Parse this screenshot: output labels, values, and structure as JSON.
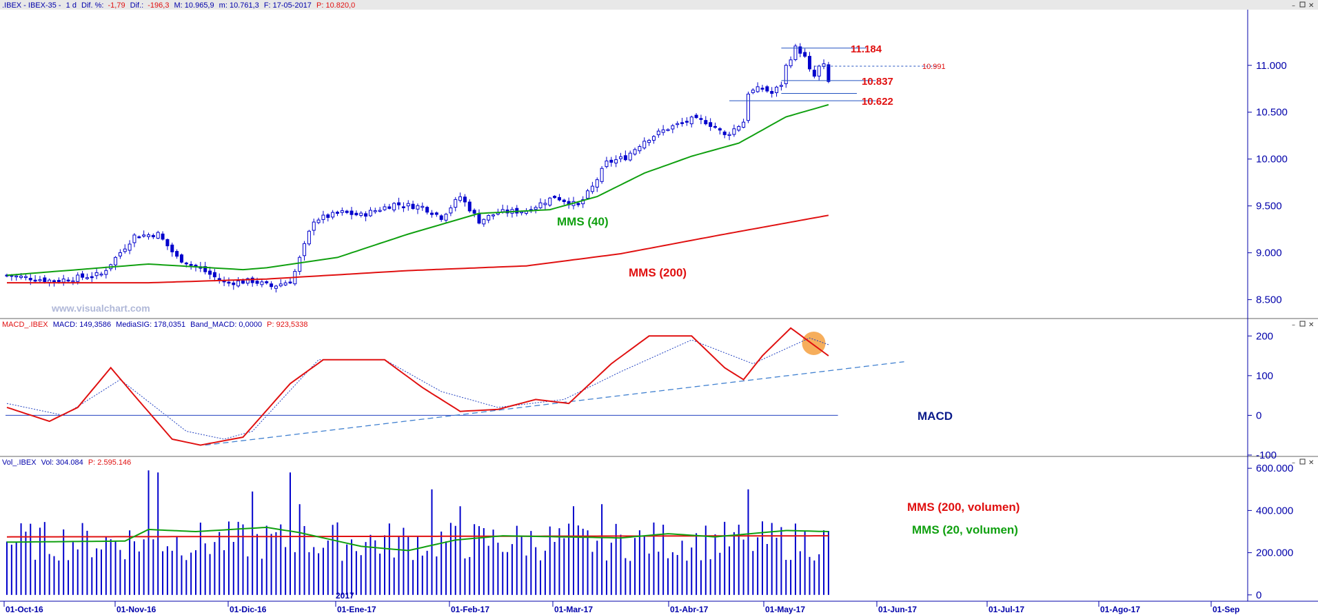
{
  "header": {
    "price_panel": {
      "symbol": ".IBEX - IBEX-35 -",
      "period": "1 d",
      "dif_pct_label": "Dif. %:",
      "dif_pct_value": "-1,79",
      "dif_label": "Dif.:",
      "dif_value": "-196,3",
      "high_label": "M: 10.965,9",
      "low_label": "m: 10.761,3",
      "date_label": "F: 17-05-2017",
      "close_label": "P: 10.820,0"
    },
    "macd_panel": {
      "name": "MACD_.IBEX",
      "macd_label": "MACD: 149,3586",
      "signal_label": "MediaSIG: 178,0351",
      "band_label": "Band_MACD: 0,0000",
      "p_label": "P: 923,5338"
    },
    "volume_panel": {
      "name": "Vol_.IBEX",
      "vol_label": "Vol: 304.084",
      "p_label": "P: 2.595.146"
    }
  },
  "watermark": "www.visualchart.com",
  "annotations": {
    "mms40": "MMS (40)",
    "mms200": "MMS (200)",
    "macd": "MACD",
    "vol_mms200": "MMS (200, volumen)",
    "vol_mms20": "MMS (20, volumen)"
  },
  "colors": {
    "candle": "#0000cc",
    "mms40": "#10a010",
    "mms200": "#e01010",
    "macd_line": "#e01010",
    "signal_line": "#2040c0",
    "trendline": "#4080d0",
    "levels": "#e01010",
    "axis": "#0000aa",
    "highlight": "#f5a040"
  },
  "chart_data": [
    {
      "type": "candlestick",
      "title": "",
      "ylim": [
        8350,
        11550
      ],
      "y_ticks": [
        "8.500",
        "9.000",
        "9.500",
        "10.000",
        "10.500",
        "11.000"
      ],
      "y_tick_values": [
        8500,
        9000,
        9500,
        10000,
        10500,
        11000
      ],
      "x_ticks": [
        "01-Oct-16",
        "01-Nov-16",
        "01-Dic-16",
        "01-Ene-17",
        "01-Feb-17",
        "01-Mar-17",
        "01-Abr-17",
        "01-May-17",
        "01-Jun-17",
        "01-Jul-17",
        "01-Ago-17",
        "01-Sep"
      ],
      "year_marker": "2017",
      "close_approx": [
        [
          0,
          8760
        ],
        [
          10,
          8700
        ],
        [
          20,
          8770
        ],
        [
          27,
          9180
        ],
        [
          32,
          9200
        ],
        [
          36,
          8950
        ],
        [
          42,
          8800
        ],
        [
          46,
          8680
        ],
        [
          52,
          8700
        ],
        [
          56,
          8640
        ],
        [
          60,
          8700
        ],
        [
          61,
          8800
        ],
        [
          65,
          9350
        ],
        [
          71,
          9430
        ],
        [
          75,
          9400
        ],
        [
          82,
          9520
        ],
        [
          88,
          9490
        ],
        [
          92,
          9380
        ],
        [
          96,
          9600
        ],
        [
          100,
          9340
        ],
        [
          104,
          9430
        ],
        [
          110,
          9450
        ],
        [
          116,
          9600
        ],
        [
          121,
          9500
        ],
        [
          124,
          9700
        ],
        [
          127,
          9960
        ],
        [
          131,
          10020
        ],
        [
          135,
          10200
        ],
        [
          140,
          10330
        ],
        [
          145,
          10420
        ],
        [
          148,
          10400
        ],
        [
          150,
          10340
        ],
        [
          152,
          10250
        ],
        [
          154,
          10320
        ],
        [
          156,
          10400
        ],
        [
          157,
          10710
        ],
        [
          160,
          10760
        ],
        [
          162,
          10700
        ],
        [
          164,
          10800
        ],
        [
          165,
          10990
        ],
        [
          167,
          11184
        ],
        [
          168,
          11150
        ],
        [
          169,
          11080
        ],
        [
          170,
          10940
        ],
        [
          171,
          10880
        ],
        [
          172,
          10980
        ],
        [
          173,
          10991
        ],
        [
          174,
          10820
        ]
      ],
      "levels": [
        {
          "label": "11.184",
          "value": 11184
        },
        {
          "label": "10.991",
          "value": 10991
        },
        {
          "label": "10.837",
          "value": 10837
        },
        {
          "label": "10.622",
          "value": 10622
        }
      ],
      "series": [
        {
          "name": "MMS (40)",
          "values_approx": [
            [
              0,
              8760
            ],
            [
              30,
              8880
            ],
            [
              50,
              8820
            ],
            [
              55,
              8840
            ],
            [
              70,
              8950
            ],
            [
              85,
              9200
            ],
            [
              100,
              9420
            ],
            [
              115,
              9460
            ],
            [
              125,
              9600
            ],
            [
              135,
              9850
            ],
            [
              145,
              10030
            ],
            [
              155,
              10170
            ],
            [
              165,
              10450
            ],
            [
              174,
              10580
            ]
          ]
        },
        {
          "name": "MMS (200)",
          "values_approx": [
            [
              0,
              8680
            ],
            [
              30,
              8680
            ],
            [
              55,
              8720
            ],
            [
              85,
              8810
            ],
            [
              110,
              8860
            ],
            [
              130,
              8990
            ],
            [
              150,
              9180
            ],
            [
              174,
              9400
            ]
          ]
        }
      ]
    },
    {
      "type": "line",
      "title": "",
      "ylim": [
        -100,
        230
      ],
      "y_ticks": [
        "200",
        "100",
        "0",
        "-100"
      ],
      "y_tick_values": [
        200,
        100,
        0,
        -100
      ],
      "series": [
        {
          "name": "MACD",
          "values_approx": [
            [
              0,
              20
            ],
            [
              9,
              -15
            ],
            [
              15,
              20
            ],
            [
              22,
              120
            ],
            [
              27,
              50
            ],
            [
              35,
              -60
            ],
            [
              41,
              -75
            ],
            [
              50,
              -55
            ],
            [
              60,
              80
            ],
            [
              67,
              140
            ],
            [
              80,
              140
            ],
            [
              88,
              70
            ],
            [
              96,
              10
            ],
            [
              104,
              15
            ],
            [
              112,
              40
            ],
            [
              119,
              30
            ],
            [
              128,
              130
            ],
            [
              136,
              200
            ],
            [
              145,
              200
            ],
            [
              152,
              120
            ],
            [
              156,
              90
            ],
            [
              160,
              150
            ],
            [
              166,
              220
            ],
            [
              174,
              150
            ]
          ]
        },
        {
          "name": "MediaSIG",
          "values_approx": [
            [
              0,
              30
            ],
            [
              12,
              0
            ],
            [
              24,
              90
            ],
            [
              38,
              -40
            ],
            [
              46,
              -60
            ],
            [
              52,
              -40
            ],
            [
              66,
              140
            ],
            [
              80,
              140
            ],
            [
              92,
              60
            ],
            [
              104,
              20
            ],
            [
              118,
              40
            ],
            [
              130,
              110
            ],
            [
              145,
              190
            ],
            [
              158,
              130
            ],
            [
              170,
              195
            ],
            [
              174,
              178
            ]
          ]
        }
      ],
      "zero_line": 0,
      "trendline": [
        [
          42,
          -75
        ],
        [
          190,
          135
        ]
      ],
      "highlight_at": [
        170,
        178
      ]
    },
    {
      "type": "bar",
      "title": "",
      "ylim": [
        -30000,
        630000
      ],
      "y_ticks": [
        "600.000",
        "400.000",
        "200.000",
        "0"
      ],
      "y_tick_values": [
        600000,
        400000,
        200000,
        0
      ],
      "series": [
        {
          "name": "Volumen",
          "values_approx": "≈250.000 average with spikes ≈590.000 (early Nov-16), ≈580.000 (Dic-16), ≈500.000 (Abr-17)"
        },
        {
          "name": "MMS (200, volumen)",
          "values_approx": [
            [
              0,
              275000
            ],
            [
              174,
              280000
            ]
          ]
        },
        {
          "name": "MMS (20, volumen)",
          "values_approx": [
            [
              0,
              250000
            ],
            [
              25,
              255000
            ],
            [
              30,
              310000
            ],
            [
              40,
              300000
            ],
            [
              55,
              320000
            ],
            [
              62,
              295000
            ],
            [
              75,
              230000
            ],
            [
              85,
              210000
            ],
            [
              95,
              260000
            ],
            [
              105,
              280000
            ],
            [
              130,
              270000
            ],
            [
              140,
              290000
            ],
            [
              150,
              275000
            ],
            [
              165,
              305000
            ],
            [
              174,
              300000
            ]
          ]
        }
      ]
    }
  ]
}
